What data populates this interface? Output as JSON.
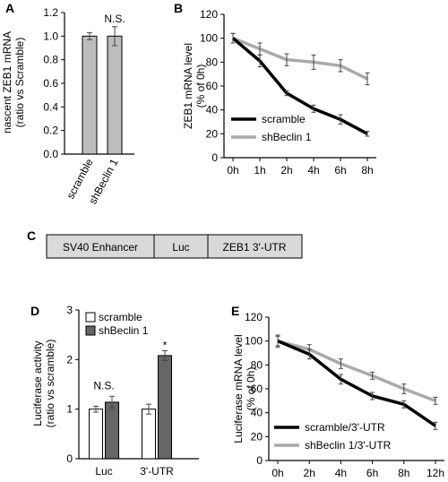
{
  "panels": {
    "A": "A",
    "B": "B",
    "C": "C",
    "D": "D",
    "E": "E"
  },
  "chart_data": [
    {
      "panel": "A",
      "type": "bar",
      "categories": [
        "scramble",
        "shBeclin 1"
      ],
      "values": [
        1.0,
        1.0
      ],
      "errors": [
        0.03,
        0.08
      ],
      "ylabel": [
        "nascent ZEB1 mRNA",
        "(ratio vs Scramble)"
      ],
      "ylim": [
        0,
        1.2
      ],
      "yticks": [
        "0.0",
        "0.2",
        "0.4",
        "0.6",
        "0.8",
        "1.0",
        "1.2"
      ],
      "annotations": [
        "N.S."
      ],
      "colors": {
        "bar": "#bdbdbd"
      }
    },
    {
      "panel": "B",
      "type": "line",
      "x": [
        "0h",
        "1h",
        "2h",
        "4h",
        "6h",
        "8h"
      ],
      "series": [
        {
          "name": "scramble",
          "values": [
            100,
            81,
            54,
            41,
            32,
            20
          ],
          "errors": [
            4,
            5,
            2,
            3,
            4,
            2
          ],
          "color": "#000000"
        },
        {
          "name": "shBeclin 1",
          "values": [
            100,
            91,
            82,
            80,
            77,
            66
          ],
          "errors": [
            4,
            5,
            5,
            6,
            5,
            5
          ],
          "color": "#aaaaaa"
        }
      ],
      "ylabel": [
        "ZEB1 mRNA  level",
        "(% of 0h)"
      ],
      "ylim": [
        0,
        120
      ],
      "yticks": [
        "0",
        "20",
        "40",
        "60",
        "80",
        "100",
        "120"
      ],
      "legend": "bottom-left"
    },
    {
      "panel": "D",
      "type": "bar",
      "categories": [
        "Luc",
        "3'-UTR"
      ],
      "series": [
        {
          "name": "scramble",
          "values": [
            1.0,
            1.0
          ],
          "errors": [
            0.06,
            0.1
          ],
          "color": "#ffffff"
        },
        {
          "name": "shBeclin 1",
          "values": [
            1.14,
            2.08
          ],
          "errors": [
            0.12,
            0.1
          ],
          "color": "#666666"
        }
      ],
      "ylabel": [
        "Luciferase activity",
        "(ratio vs scramble)"
      ],
      "ylim": [
        0,
        3
      ],
      "yticks": [
        "0",
        "1",
        "2",
        "3"
      ],
      "annotations": [
        "N.S.",
        "*"
      ],
      "legend": "top-left"
    },
    {
      "panel": "E",
      "type": "line",
      "x": [
        "0h",
        "2h",
        "4h",
        "6h",
        "8h",
        "12h"
      ],
      "series": [
        {
          "name": "scramble/3'-UTR",
          "values": [
            100,
            89,
            68,
            54,
            47,
            29
          ],
          "errors": [
            5,
            4,
            4,
            3,
            3,
            3
          ],
          "color": "#000000"
        },
        {
          "name": "shBeclin 1/3'-UTR",
          "values": [
            100,
            93,
            81,
            71,
            60,
            50
          ],
          "errors": [
            4,
            4,
            4,
            3,
            4,
            3
          ],
          "color": "#aaaaaa"
        }
      ],
      "ylabel": [
        "Luciferase mRNA level",
        "(% of 0h)"
      ],
      "ylim": [
        0,
        120
      ],
      "yticks": [
        "0",
        "20",
        "40",
        "60",
        "80",
        "100",
        "120"
      ],
      "legend": "bottom-left"
    }
  ],
  "construct": {
    "segments": [
      "SV40 Enhancer",
      "Luc",
      "ZEB1 3'-UTR"
    ],
    "fill": "#d9d9d9"
  }
}
